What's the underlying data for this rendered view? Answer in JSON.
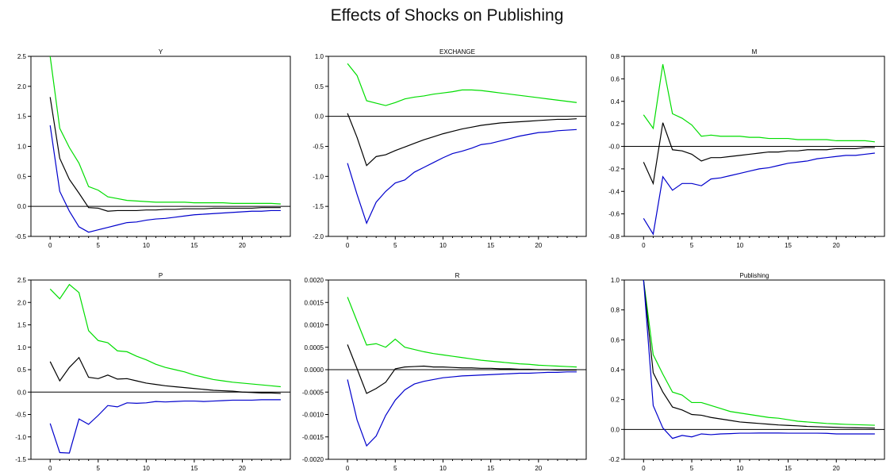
{
  "figure_title": "Effects of Shocks on Publishing",
  "colors": {
    "upper": "#00dd00",
    "center": "#000000",
    "lower": "#0000cc",
    "axis": "#000000"
  },
  "chart_data": [
    {
      "type": "line",
      "title": "Y",
      "xlim": [
        -2,
        25
      ],
      "ylim": [
        -0.5,
        2.5
      ],
      "xticks": [
        0,
        5,
        10,
        15,
        20
      ],
      "yticks": [
        -0.5,
        0.0,
        0.5,
        1.0,
        1.5,
        2.0,
        2.5
      ],
      "ytick_labels": [
        "-0.5",
        "0.0",
        "0.5",
        "1.0",
        "1.5",
        "2.0",
        "2.5"
      ],
      "x": [
        0,
        1,
        2,
        3,
        4,
        5,
        6,
        7,
        8,
        9,
        10,
        11,
        12,
        13,
        14,
        15,
        16,
        17,
        18,
        19,
        20,
        21,
        22,
        23,
        24
      ],
      "series": [
        {
          "role": "upper",
          "values": [
            2.5,
            1.3,
            0.98,
            0.72,
            0.33,
            0.27,
            0.16,
            0.13,
            0.1,
            0.09,
            0.08,
            0.07,
            0.07,
            0.07,
            0.07,
            0.06,
            0.06,
            0.06,
            0.06,
            0.05,
            0.05,
            0.05,
            0.05,
            0.05,
            0.04
          ]
        },
        {
          "role": "center",
          "values": [
            1.82,
            0.8,
            0.45,
            0.22,
            -0.02,
            -0.03,
            -0.08,
            -0.07,
            -0.07,
            -0.07,
            -0.06,
            -0.06,
            -0.05,
            -0.05,
            -0.04,
            -0.04,
            -0.04,
            -0.03,
            -0.03,
            -0.03,
            -0.03,
            -0.03,
            -0.02,
            -0.02,
            -0.02
          ]
        },
        {
          "role": "lower",
          "values": [
            1.35,
            0.25,
            -0.08,
            -0.34,
            -0.43,
            -0.39,
            -0.35,
            -0.31,
            -0.27,
            -0.26,
            -0.23,
            -0.21,
            -0.2,
            -0.18,
            -0.16,
            -0.14,
            -0.13,
            -0.12,
            -0.11,
            -0.1,
            -0.09,
            -0.08,
            -0.08,
            -0.07,
            -0.07
          ]
        }
      ]
    },
    {
      "type": "line",
      "title": "EXCHANGE",
      "xlim": [
        -2,
        25
      ],
      "ylim": [
        -2.0,
        1.0
      ],
      "xticks": [
        0,
        5,
        10,
        15,
        20
      ],
      "yticks": [
        -2.0,
        -1.5,
        -1.0,
        -0.5,
        0.0,
        0.5,
        1.0
      ],
      "ytick_labels": [
        "-2.0",
        "-1.5",
        "-1.0",
        "-0.5",
        "0.0",
        "0.5",
        "1.0"
      ],
      "x": [
        0,
        1,
        2,
        3,
        4,
        5,
        6,
        7,
        8,
        9,
        10,
        11,
        12,
        13,
        14,
        15,
        16,
        17,
        18,
        19,
        20,
        21,
        22,
        23,
        24
      ],
      "series": [
        {
          "role": "upper",
          "values": [
            0.88,
            0.68,
            0.26,
            0.22,
            0.18,
            0.23,
            0.29,
            0.32,
            0.34,
            0.37,
            0.39,
            0.41,
            0.44,
            0.44,
            0.43,
            0.41,
            0.39,
            0.37,
            0.35,
            0.33,
            0.31,
            0.29,
            0.27,
            0.25,
            0.23
          ]
        },
        {
          "role": "center",
          "values": [
            0.05,
            -0.35,
            -0.82,
            -0.67,
            -0.64,
            -0.57,
            -0.51,
            -0.45,
            -0.39,
            -0.34,
            -0.29,
            -0.25,
            -0.21,
            -0.18,
            -0.15,
            -0.13,
            -0.11,
            -0.1,
            -0.09,
            -0.08,
            -0.07,
            -0.06,
            -0.05,
            -0.05,
            -0.04
          ]
        },
        {
          "role": "lower",
          "values": [
            -0.78,
            -1.3,
            -1.78,
            -1.43,
            -1.25,
            -1.11,
            -1.06,
            -0.93,
            -0.85,
            -0.77,
            -0.69,
            -0.62,
            -0.58,
            -0.53,
            -0.47,
            -0.45,
            -0.41,
            -0.37,
            -0.33,
            -0.3,
            -0.27,
            -0.26,
            -0.24,
            -0.23,
            -0.22
          ]
        }
      ]
    },
    {
      "type": "line",
      "title": "M",
      "xlim": [
        -2,
        25
      ],
      "ylim": [
        -0.8,
        0.8
      ],
      "xticks": [
        0,
        5,
        10,
        15,
        20
      ],
      "yticks": [
        -0.8,
        -0.6,
        -0.4,
        -0.2,
        0.0,
        0.2,
        0.4,
        0.6,
        0.8
      ],
      "ytick_labels": [
        "-0.8",
        "-0.6",
        "-0.4",
        "-0.2",
        "-0.0",
        "0.2",
        "0.4",
        "0.6",
        "0.8"
      ],
      "x": [
        0,
        1,
        2,
        3,
        4,
        5,
        6,
        7,
        8,
        9,
        10,
        11,
        12,
        13,
        14,
        15,
        16,
        17,
        18,
        19,
        20,
        21,
        22,
        23,
        24
      ],
      "series": [
        {
          "role": "upper",
          "values": [
            0.28,
            0.16,
            0.73,
            0.29,
            0.25,
            0.19,
            0.09,
            0.1,
            0.09,
            0.09,
            0.09,
            0.08,
            0.08,
            0.07,
            0.07,
            0.07,
            0.06,
            0.06,
            0.06,
            0.06,
            0.05,
            0.05,
            0.05,
            0.05,
            0.04
          ]
        },
        {
          "role": "center",
          "values": [
            -0.14,
            -0.33,
            0.21,
            -0.03,
            -0.04,
            -0.07,
            -0.13,
            -0.1,
            -0.1,
            -0.09,
            -0.08,
            -0.07,
            -0.06,
            -0.05,
            -0.05,
            -0.04,
            -0.04,
            -0.03,
            -0.03,
            -0.03,
            -0.02,
            -0.02,
            -0.02,
            -0.01,
            -0.01
          ]
        },
        {
          "role": "lower",
          "values": [
            -0.64,
            -0.78,
            -0.27,
            -0.39,
            -0.33,
            -0.33,
            -0.35,
            -0.29,
            -0.28,
            -0.26,
            -0.24,
            -0.22,
            -0.2,
            -0.19,
            -0.17,
            -0.15,
            -0.14,
            -0.13,
            -0.11,
            -0.1,
            -0.09,
            -0.08,
            -0.08,
            -0.07,
            -0.06
          ]
        }
      ]
    },
    {
      "type": "line",
      "title": "P",
      "xlim": [
        -2,
        25
      ],
      "ylim": [
        -1.5,
        2.5
      ],
      "xticks": [
        0,
        5,
        10,
        15,
        20
      ],
      "yticks": [
        -1.5,
        -1.0,
        -0.5,
        0.0,
        0.5,
        1.0,
        1.5,
        2.0,
        2.5
      ],
      "ytick_labels": [
        "-1.5",
        "-1.0",
        "-0.5",
        "0.0",
        "0.5",
        "1.0",
        "1.5",
        "2.0",
        "2.5"
      ],
      "x": [
        0,
        1,
        2,
        3,
        4,
        5,
        6,
        7,
        8,
        9,
        10,
        11,
        12,
        13,
        14,
        15,
        16,
        17,
        18,
        19,
        20,
        21,
        22,
        23,
        24
      ],
      "series": [
        {
          "role": "upper",
          "values": [
            2.3,
            2.08,
            2.4,
            2.22,
            1.37,
            1.15,
            1.1,
            0.92,
            0.9,
            0.8,
            0.72,
            0.62,
            0.55,
            0.5,
            0.45,
            0.38,
            0.33,
            0.28,
            0.25,
            0.22,
            0.2,
            0.18,
            0.16,
            0.14,
            0.12
          ]
        },
        {
          "role": "center",
          "values": [
            0.68,
            0.25,
            0.55,
            0.77,
            0.33,
            0.3,
            0.38,
            0.29,
            0.3,
            0.25,
            0.2,
            0.17,
            0.14,
            0.12,
            0.1,
            0.08,
            0.06,
            0.04,
            0.03,
            0.02,
            0.0,
            -0.01,
            -0.02,
            -0.02,
            -0.03
          ]
        },
        {
          "role": "lower",
          "values": [
            -0.7,
            -1.35,
            -1.36,
            -0.6,
            -0.72,
            -0.52,
            -0.3,
            -0.33,
            -0.24,
            -0.25,
            -0.24,
            -0.21,
            -0.22,
            -0.21,
            -0.2,
            -0.2,
            -0.21,
            -0.2,
            -0.19,
            -0.18,
            -0.18,
            -0.18,
            -0.17,
            -0.17,
            -0.17
          ]
        }
      ]
    },
    {
      "type": "line",
      "title": "R",
      "xlim": [
        -2,
        25
      ],
      "ylim": [
        -0.002,
        0.002
      ],
      "xticks": [
        0,
        5,
        10,
        15,
        20
      ],
      "yticks": [
        -0.002,
        -0.0015,
        -0.001,
        -0.0005,
        0.0,
        0.0005,
        0.001,
        0.0015,
        0.002
      ],
      "ytick_labels": [
        "-0.0020",
        "-0.0015",
        "-0.0010",
        "-0.0005",
        "0.0000",
        "0.0005",
        "0.0010",
        "0.0015",
        "0.0020"
      ],
      "x": [
        0,
        1,
        2,
        3,
        4,
        5,
        6,
        7,
        8,
        9,
        10,
        11,
        12,
        13,
        14,
        15,
        16,
        17,
        18,
        19,
        20,
        21,
        22,
        23,
        24
      ],
      "series": [
        {
          "role": "upper",
          "values": [
            0.00162,
            0.00108,
            0.00055,
            0.00058,
            0.0005,
            0.00068,
            0.0005,
            0.00045,
            0.0004,
            0.00036,
            0.00033,
            0.0003,
            0.00027,
            0.00024,
            0.00021,
            0.00019,
            0.00017,
            0.00015,
            0.00013,
            0.00012,
            0.0001,
            9e-05,
            8e-05,
            7e-05,
            6e-05
          ]
        },
        {
          "role": "center",
          "values": [
            0.00056,
            2e-05,
            -0.00053,
            -0.00042,
            -0.00028,
            2e-05,
            6e-05,
            7e-05,
            8e-05,
            6e-05,
            6e-05,
            5e-05,
            4e-05,
            4e-05,
            3e-05,
            3e-05,
            2e-05,
            2e-05,
            1e-05,
            1e-05,
            0.0,
            0.0,
            -1e-05,
            -1e-05,
            -1e-05
          ]
        },
        {
          "role": "lower",
          "values": [
            -0.00022,
            -0.00112,
            -0.0017,
            -0.00148,
            -0.00102,
            -0.00068,
            -0.00045,
            -0.00032,
            -0.00026,
            -0.00022,
            -0.00018,
            -0.00016,
            -0.00014,
            -0.00013,
            -0.00012,
            -0.00011,
            -0.0001,
            -9e-05,
            -8e-05,
            -8e-05,
            -7e-05,
            -6e-05,
            -6e-05,
            -5e-05,
            -5e-05
          ]
        }
      ]
    },
    {
      "type": "line",
      "title": "Publishing",
      "xlim": [
        -2,
        25
      ],
      "ylim": [
        -0.2,
        1.0
      ],
      "xticks": [
        0,
        5,
        10,
        15,
        20
      ],
      "yticks": [
        -0.2,
        0.0,
        0.2,
        0.4,
        0.6,
        0.8,
        1.0
      ],
      "ytick_labels": [
        "-0.2",
        "0.0",
        "0.2",
        "0.4",
        "0.6",
        "0.8",
        "1.0"
      ],
      "x": [
        0,
        1,
        2,
        3,
        4,
        5,
        6,
        7,
        8,
        9,
        10,
        11,
        12,
        13,
        14,
        15,
        16,
        17,
        18,
        19,
        20,
        21,
        22,
        23,
        24
      ],
      "series": [
        {
          "role": "upper",
          "values": [
            1.0,
            0.5,
            0.37,
            0.25,
            0.23,
            0.18,
            0.18,
            0.16,
            0.14,
            0.12,
            0.11,
            0.1,
            0.09,
            0.08,
            0.075,
            0.065,
            0.055,
            0.05,
            0.045,
            0.04,
            0.037,
            0.034,
            0.032,
            0.03,
            0.028
          ]
        },
        {
          "role": "center",
          "values": [
            1.0,
            0.38,
            0.25,
            0.15,
            0.13,
            0.1,
            0.095,
            0.08,
            0.07,
            0.06,
            0.05,
            0.045,
            0.04,
            0.035,
            0.03,
            0.027,
            0.024,
            0.02,
            0.018,
            0.016,
            0.014,
            0.012,
            0.011,
            0.01,
            0.009
          ]
        },
        {
          "role": "lower",
          "values": [
            1.0,
            0.16,
            0.01,
            -0.06,
            -0.04,
            -0.05,
            -0.03,
            -0.035,
            -0.03,
            -0.028,
            -0.025,
            -0.025,
            -0.024,
            -0.024,
            -0.024,
            -0.025,
            -0.025,
            -0.025,
            -0.025,
            -0.026,
            -0.03,
            -0.03,
            -0.03,
            -0.03,
            -0.03
          ]
        }
      ]
    }
  ]
}
